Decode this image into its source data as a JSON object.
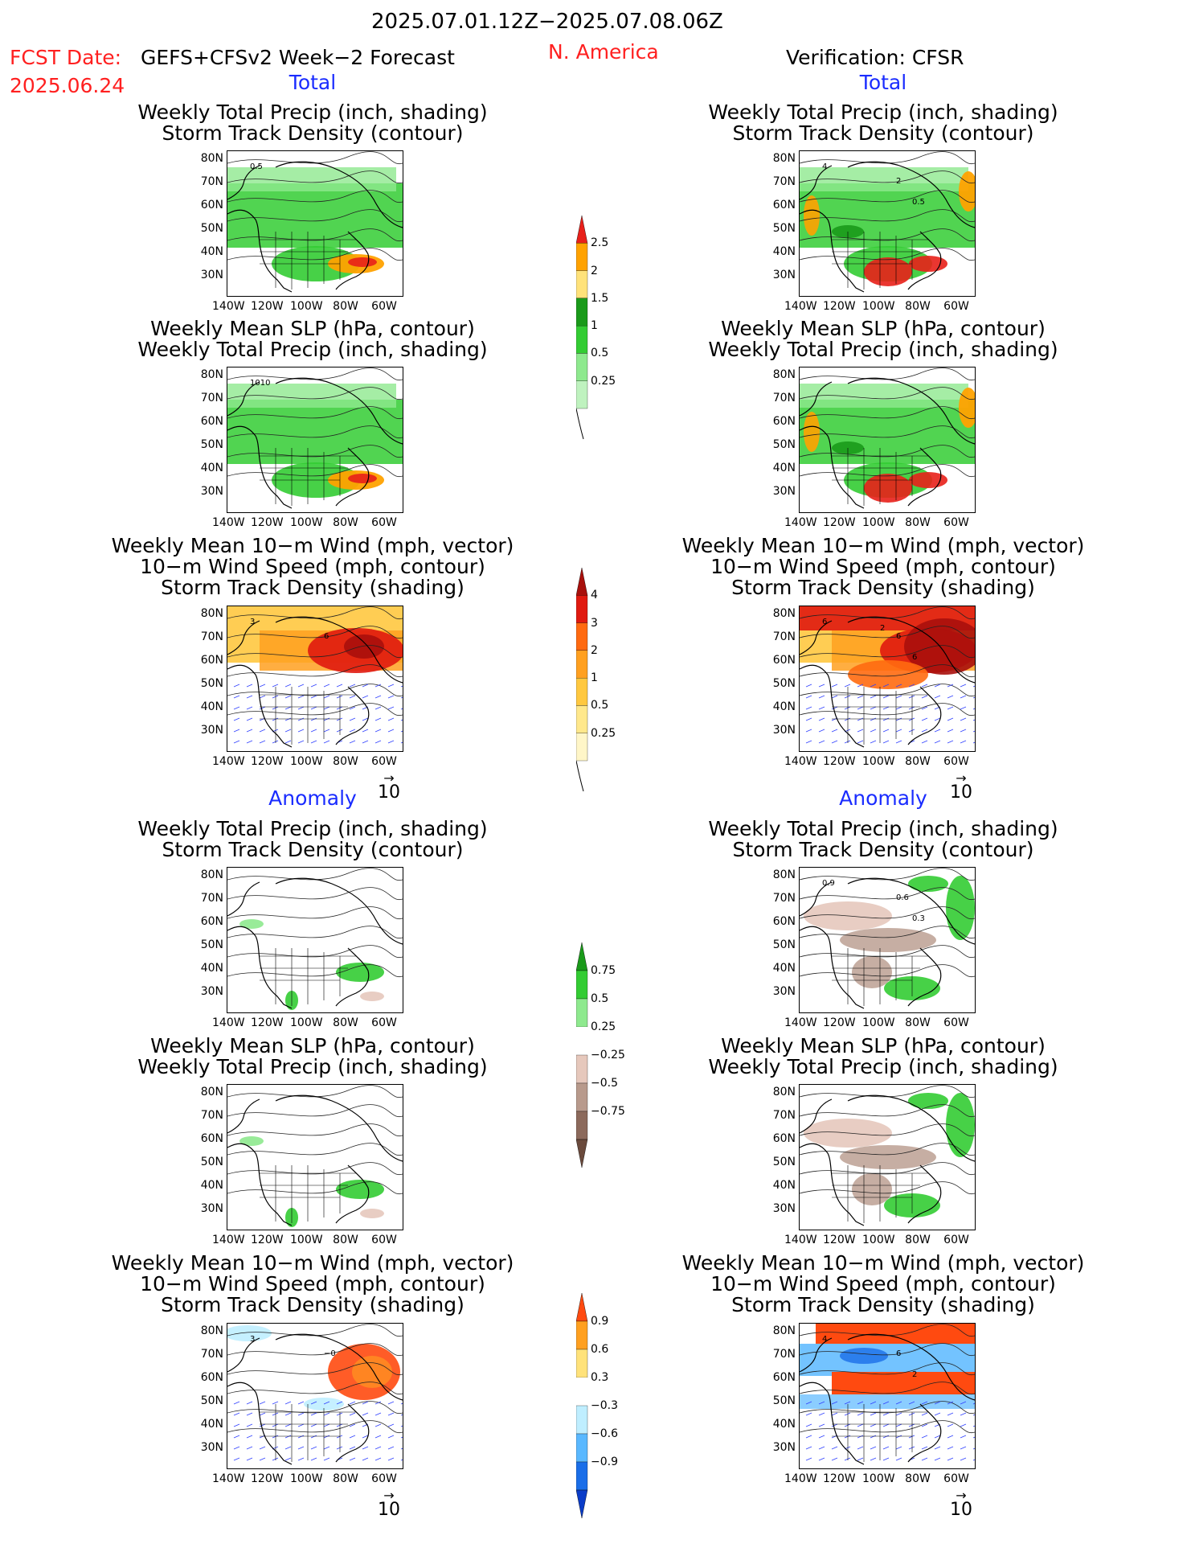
{
  "header": {
    "date_range": "2025.07.01.12Z−2025.07.08.06Z",
    "fcst_label": "FCST Date:",
    "fcst_model": "GEFS+CFSv2 Week−2 Forecast",
    "fcst_date": "2025.06.24",
    "region": "N. America",
    "verification": "Verification: CFSR"
  },
  "sections": {
    "total": "Total",
    "anomaly": "Anomaly"
  },
  "titles": {
    "precip_storm": [
      "Weekly Total Precip (inch, shading)",
      "Storm Track Density (contour)"
    ],
    "slp_precip": [
      "Weekly Mean SLP (hPa, contour)",
      "Weekly Total Precip (inch, shading)"
    ],
    "wind_storm": [
      "Weekly Mean 10−m Wind (mph, vector)",
      "10−m Wind Speed (mph, contour)",
      "Storm Track Density (shading)"
    ]
  },
  "axes": {
    "lat_ticks": [
      "80N",
      "70N",
      "60N",
      "50N",
      "40N",
      "30N"
    ],
    "lon_ticks": [
      "140W",
      "120W",
      "100W",
      "80W",
      "60W"
    ],
    "vector_ref": "10"
  },
  "colorbars": {
    "precip_total": {
      "labels": [
        "2.5",
        "2",
        "1.5",
        "1",
        "0.5",
        "0.25"
      ],
      "colors": [
        "#e8201a",
        "#ffa200",
        "#ffe27a",
        "#1a9a1a",
        "#33cc33",
        "#8ee98e",
        "#bff2bf"
      ]
    },
    "storm_total": {
      "labels": [
        "4",
        "3",
        "2",
        "1",
        "0.5",
        "0.25"
      ],
      "colors": [
        "#a8100c",
        "#e01a10",
        "#ff6a10",
        "#ffa020",
        "#ffc840",
        "#ffe88c",
        "#fff6c8"
      ]
    },
    "precip_anom": {
      "labels": [
        "0.75",
        "0.5",
        "0.25",
        "−0.25",
        "−0.5",
        "−0.75"
      ],
      "colors": [
        "#1a9a1a",
        "#33cc33",
        "#8ee98e",
        "#ffffff",
        "#e6c8bc",
        "#b89a8c",
        "#8c6a5c",
        "#6a4a3c"
      ]
    },
    "storm_anom": {
      "labels": [
        "0.9",
        "0.6",
        "0.3",
        "−0.3",
        "−0.6",
        "−0.9"
      ],
      "colors": [
        "#ff4a10",
        "#ffa020",
        "#ffe27a",
        "#ffffff",
        "#bfeeff",
        "#5ab8ff",
        "#1a6ee8",
        "#0a3cc8"
      ]
    }
  },
  "contour_labels": {
    "left_precip_total": "0.5",
    "right_precip_total": [
      "4",
      "2",
      "0.5"
    ],
    "left_slp_total": "1010",
    "left_wind_total": [
      "3",
      "6"
    ],
    "right_wind_total": [
      "6",
      "6",
      "6",
      "2"
    ],
    "right_precip_anom": [
      "0.9",
      "0.6",
      "0.3"
    ],
    "left_wind_anom": [
      "3",
      "−0"
    ],
    "right_wind_anom": [
      "4",
      "6",
      "2"
    ]
  },
  "colors": {
    "accent_red": "#ff2020",
    "accent_blue": "#1a2cff"
  }
}
